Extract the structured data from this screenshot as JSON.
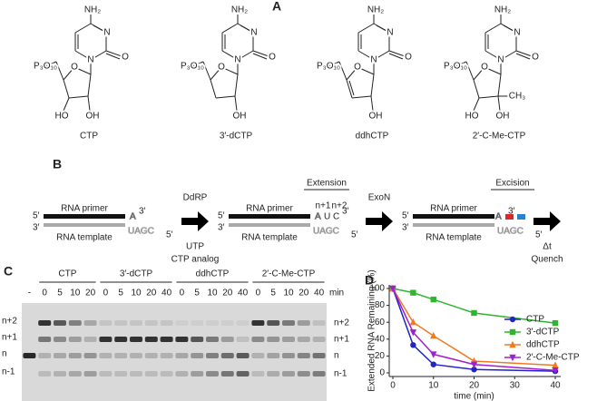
{
  "panel_a": {
    "label": "A",
    "compounds": [
      {
        "name": "CTP",
        "amine": "NH₂",
        "n3": "N",
        "n1": "N",
        "carbonyl": "O",
        "ring_o": "O",
        "phosphate": "P₃O₁₀",
        "o3": "HO",
        "o2": "OH"
      },
      {
        "name": "3′-dCTP",
        "amine": "NH₂",
        "n3": "N",
        "n1": "N",
        "carbonyl": "O",
        "ring_o": "O",
        "phosphate": "P₃O₁₀",
        "o2": "OH"
      },
      {
        "name": "ddhCTP",
        "amine": "NH₂",
        "n3": "N",
        "n1": "N",
        "carbonyl": "O",
        "ring_o": "O",
        "phosphate": "P₃O₁₀",
        "o2": "OH",
        "double_bond": true
      },
      {
        "name": "2′-C-Me-CTP",
        "amine": "NH₂",
        "n3": "N",
        "n1": "N",
        "carbonyl": "O",
        "ring_o": "O",
        "phosphate": "P₃O₁₀",
        "o3": "HO",
        "o2": "OH",
        "methyl": "CH₃"
      }
    ]
  },
  "panel_b": {
    "label": "B",
    "primer_label": "RNA primer",
    "template_label": "RNA template",
    "end_5": "5′",
    "end_3": "3′",
    "primer_end": "A",
    "template_seq": "UAGC",
    "extended_seq": [
      "A",
      "U",
      "C"
    ],
    "enzyme_1": "DdRP",
    "substrate_1": "UTP",
    "substrate_2": "CTP analog",
    "step_2": "Extension",
    "pos_1": "n+1",
    "pos_2": "n+2",
    "enzyme_2": "ExoN",
    "step_3": "Excision",
    "delay": "Δt",
    "end": "Quench",
    "color_1": "#e0262b",
    "color_2": "#2a7fd0"
  },
  "panel_c": {
    "label": "C",
    "control": "-",
    "unit": "min",
    "groups": [
      {
        "name": "CTP",
        "color": "#2a7fd0",
        "times": [
          "0",
          "5",
          "10",
          "20"
        ]
      },
      {
        "name": "3′-dCTP",
        "color": "#39b54a",
        "times": [
          "0",
          "5",
          "10",
          "20",
          "40"
        ]
      },
      {
        "name": "ddhCTP",
        "color": "#f07a20",
        "times": [
          "0",
          "5",
          "10",
          "20",
          "40"
        ]
      },
      {
        "name": "2′-C-Me-CTP",
        "color": "#b03fd0",
        "times": [
          "0",
          "5",
          "10",
          "20",
          "40"
        ]
      }
    ],
    "bands": [
      {
        "name": "n+2",
        "color": "#2a7fd0"
      },
      {
        "name": "n+1",
        "color": "#e0262b"
      },
      {
        "name": "n",
        "color": "#222222"
      },
      {
        "name": "n-1",
        "color": "#222222"
      }
    ]
  },
  "chart_data": {
    "type": "line",
    "label": "D",
    "xlabel": "time (min)",
    "ylabel": "Extended RNA Remaining (%)",
    "x": [
      0,
      5,
      10,
      20,
      40
    ],
    "xlim": [
      0,
      40
    ],
    "xticks": [
      0,
      10,
      20,
      30,
      40
    ],
    "ylim": [
      0,
      100
    ],
    "yticks": [
      0,
      20,
      40,
      60,
      80,
      100
    ],
    "legend": "lower right",
    "series": [
      {
        "name": "CTP",
        "color": "#2323c8",
        "marker": "circle",
        "values": [
          100,
          33,
          10,
          4,
          2
        ]
      },
      {
        "name": "3′-dCTP",
        "color": "#2fb52f",
        "marker": "square",
        "values": [
          100,
          95,
          87,
          71,
          59
        ]
      },
      {
        "name": "ddhCTP",
        "color": "#f07a20",
        "marker": "triangle",
        "values": [
          100,
          60,
          44,
          14,
          9
        ]
      },
      {
        "name": "2′-C-Me-CTP",
        "color": "#a020d0",
        "marker": "triangle-down",
        "values": [
          100,
          48,
          22,
          10,
          3
        ]
      }
    ]
  }
}
